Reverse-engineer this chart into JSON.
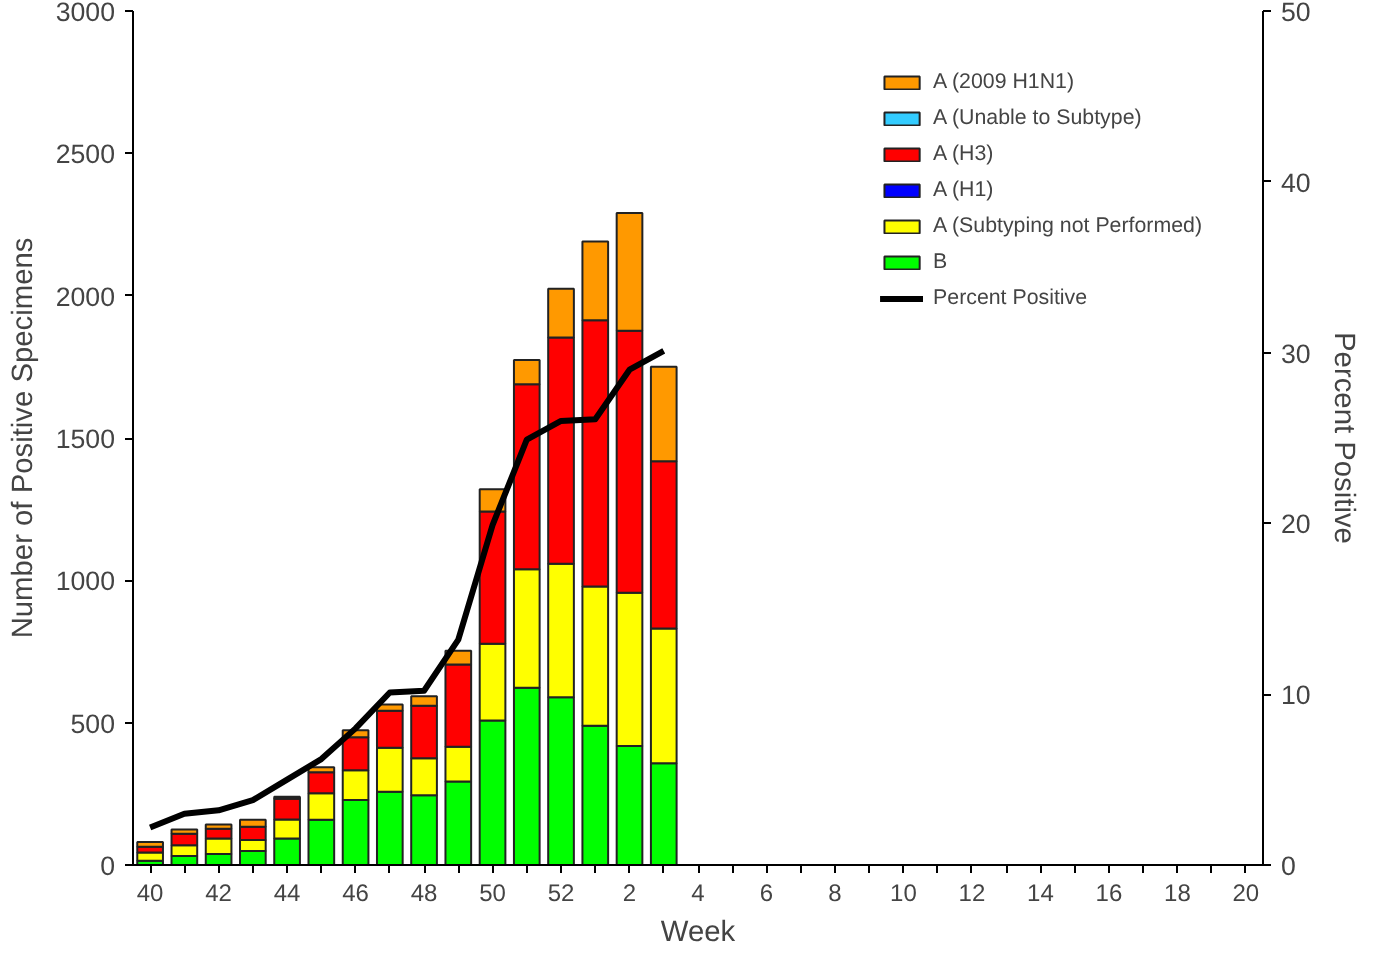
{
  "chart_data": {
    "type": "bar",
    "stacked": true,
    "xlabel": "Week",
    "ylabel": "Number of Positive Specimens",
    "y2label": "Percent Positive",
    "categories": [
      "40",
      null,
      "42",
      null,
      "44",
      null,
      "46",
      null,
      "48",
      null,
      "50",
      null,
      "52",
      null,
      "2",
      null,
      "4",
      null,
      "6",
      null,
      "8",
      null,
      "10",
      null,
      "12",
      null,
      "14",
      null,
      "16",
      null,
      "18",
      null,
      "20"
    ],
    "series": [
      {
        "name": "B",
        "color": "#00ff00",
        "values": [
          15,
          32,
          39,
          49,
          93,
          159,
          228,
          257,
          245,
          293,
          508,
          623,
          589,
          489,
          418,
          357,
          null,
          null,
          null,
          null,
          null,
          null,
          null,
          null,
          null,
          null,
          null,
          null,
          null,
          null,
          null,
          null,
          null
        ]
      },
      {
        "name": "A (Subtyping not Performed)",
        "color": "#ffff00",
        "values": [
          29,
          37,
          54,
          39,
          67,
          93,
          105,
          155,
          130,
          122,
          269,
          416,
          469,
          489,
          538,
          474,
          null,
          null,
          null,
          null,
          null,
          null,
          null,
          null,
          null,
          null,
          null,
          null,
          null,
          null,
          null,
          null,
          null
        ]
      },
      {
        "name": "A (H1)",
        "color": "#0000ff",
        "values": [
          null,
          null,
          null,
          null,
          null,
          null,
          null,
          null,
          null,
          null,
          null,
          null,
          null,
          null,
          null,
          null,
          null,
          null,
          null,
          null,
          null,
          null,
          null,
          null,
          null,
          null,
          null,
          null,
          null,
          null,
          null,
          null,
          null
        ]
      },
      {
        "name": "A (H3)",
        "color": "#ff0000",
        "values": [
          20,
          41,
          34,
          46,
          73,
          74,
          116,
          130,
          184,
          289,
          465,
          650,
          795,
          936,
          921,
          587,
          null,
          null,
          null,
          null,
          null,
          null,
          null,
          null,
          null,
          null,
          null,
          null,
          null,
          null,
          null,
          null,
          null
        ]
      },
      {
        "name": "A (Unable to Subtype)",
        "color": "#33ccff",
        "values": [
          null,
          null,
          null,
          null,
          null,
          null,
          null,
          null,
          null,
          null,
          null,
          null,
          null,
          null,
          null,
          null,
          null,
          null,
          null,
          null,
          null,
          null,
          null,
          null,
          null,
          null,
          null,
          null,
          null,
          null,
          null,
          null,
          null
        ]
      },
      {
        "name": "A (2009 H1N1)",
        "color": "#ff9900",
        "values": [
          17,
          15,
          15,
          25,
          7,
          17,
          24,
          22,
          34,
          49,
          78,
          85,
          171,
          276,
          413,
          332,
          null,
          null,
          null,
          null,
          null,
          null,
          null,
          null,
          null,
          null,
          null,
          null,
          null,
          null,
          null,
          null,
          null
        ]
      },
      {
        "name": "Percent Positive",
        "type": "line",
        "axis": "y2",
        "color": "#000000",
        "values": [
          2.2,
          3.0,
          3.2,
          3.8,
          5.0,
          6.2,
          8.0,
          10.1,
          10.2,
          13.2,
          19.9,
          24.9,
          26.0,
          26.1,
          29.0,
          30.1,
          null,
          null,
          null,
          null,
          null,
          null,
          null,
          null,
          null,
          null,
          null,
          null,
          null,
          null,
          null,
          null,
          null
        ]
      }
    ],
    "ylim": [
      0,
      3000
    ],
    "yticks": [
      0,
      500,
      1000,
      1500,
      2000,
      2500,
      3000
    ],
    "y2lim": [
      0,
      50
    ],
    "y2ticks": [
      0,
      10,
      20,
      30,
      40,
      50
    ],
    "grid": false,
    "legend": "top right",
    "line_style": "solid",
    "marker": "none"
  }
}
